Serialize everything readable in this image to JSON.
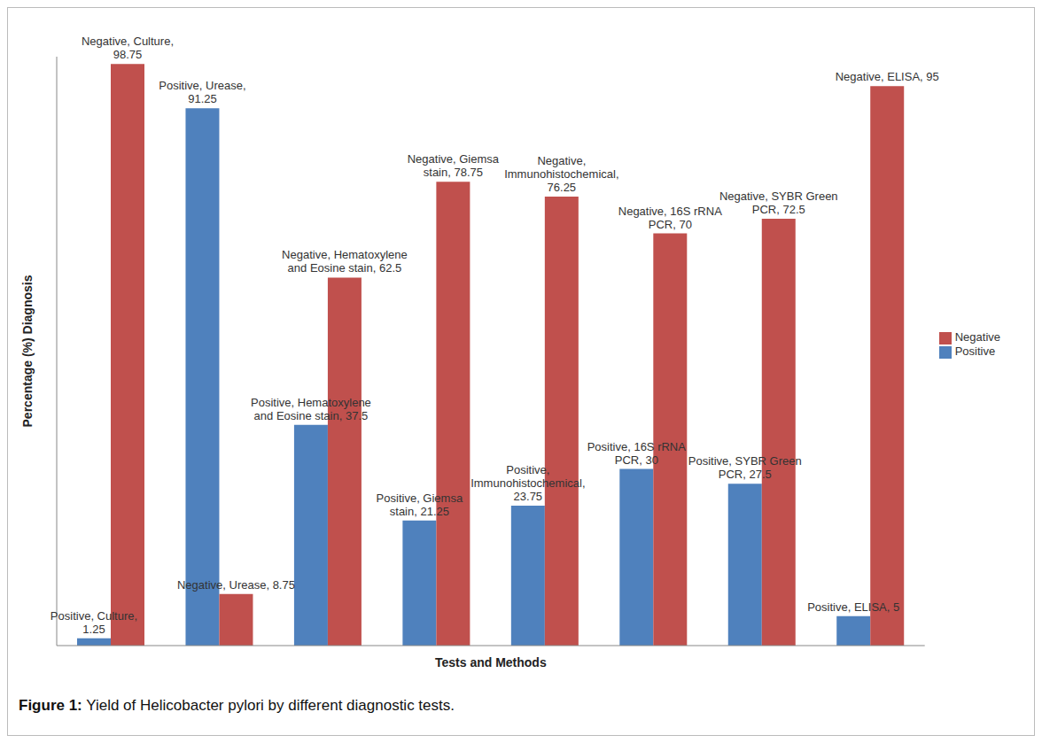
{
  "chart_data": {
    "type": "bar",
    "caption": "Figure 1: Yield of Helicobacter pylori by different diagnostic tests.",
    "x_label": "Tests and Methods",
    "y_label": "Percentage (%) Diagnosis",
    "categories": [
      "Culture",
      "Urease",
      "Hematoxylene and Eosine stain",
      "Giemsa stain",
      "Immunohistochemical",
      "16S rRNA PCR",
      "SYBR Green PCR",
      "ELISA"
    ],
    "series": [
      {
        "name": "Positive",
        "color": "#4f81bd",
        "values": [
          1.25,
          91.25,
          37.5,
          21.25,
          23.75,
          30,
          27.5,
          5
        ],
        "value_labels": [
          "Positive, Culture, 1.25",
          "Positive, Urease, 91.25",
          "Positive, Hematoxylene and Eosine stain, 37.5",
          "Positive, Giemsa stain, 21.25",
          "Positive, Immunohistochemical, 23.75",
          "Positive, 16S rRNA PCR, 30",
          "Positive, SYBR Green PCR, 27.5",
          "Positive, ELISA, 5"
        ]
      },
      {
        "name": "Negative",
        "color": "#c0504d",
        "values": [
          98.75,
          8.75,
          62.5,
          78.75,
          76.25,
          70,
          72.5,
          95
        ],
        "value_labels": [
          "Negative, Culture, 98.75",
          "Negative, Urease, 8.75",
          "Negative, Hematoxylene and Eosine stain, 62.5",
          "Negative, Giemsa stain, 78.75",
          "Negative, Immunohistochemical, 76.25",
          "Negative, 16S rRNA PCR, 70",
          "Negative, SYBR Green PCR, 72.5",
          "Negative, ELISA, 95"
        ]
      }
    ],
    "ylim": [
      0,
      100
    ],
    "data_labels": true,
    "tick_labels": false,
    "legend": "right"
  }
}
